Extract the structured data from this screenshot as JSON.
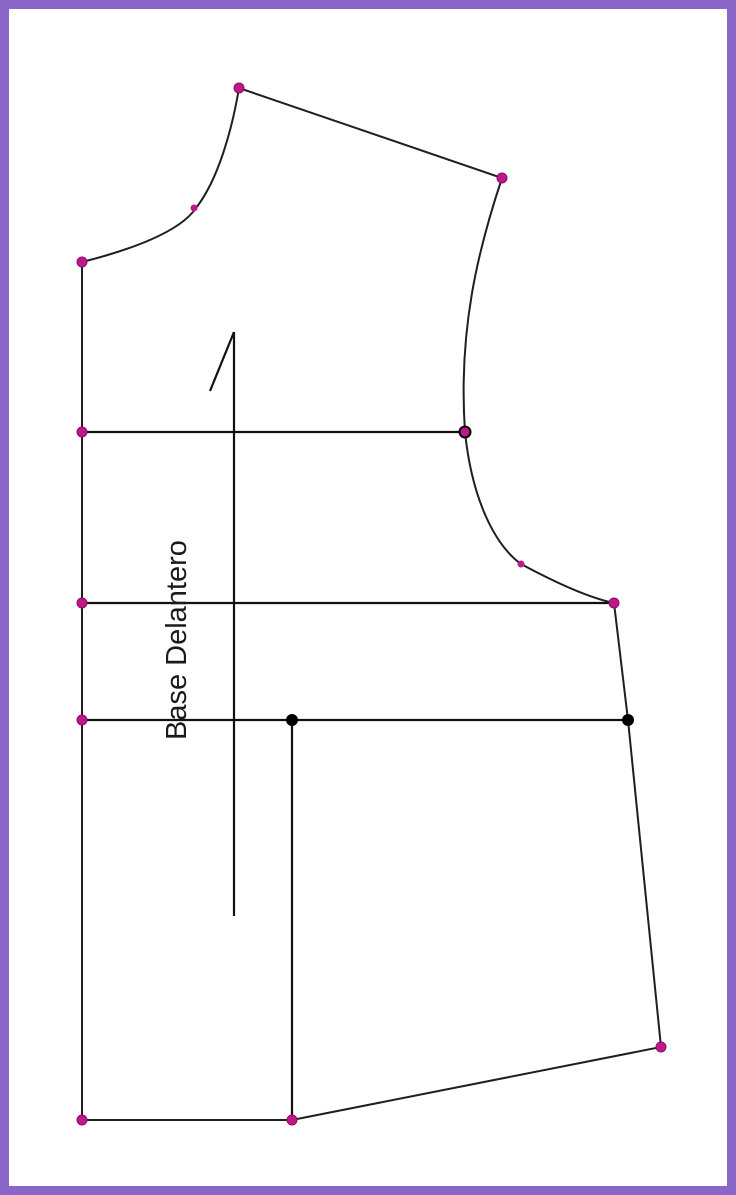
{
  "piece": {
    "name": "Base Delantero"
  },
  "colors": {
    "frame": "#8a66c8",
    "background": "#ffffff",
    "line": "#1f1f1f",
    "point": "#c0188a",
    "intersection": "#000000"
  }
}
